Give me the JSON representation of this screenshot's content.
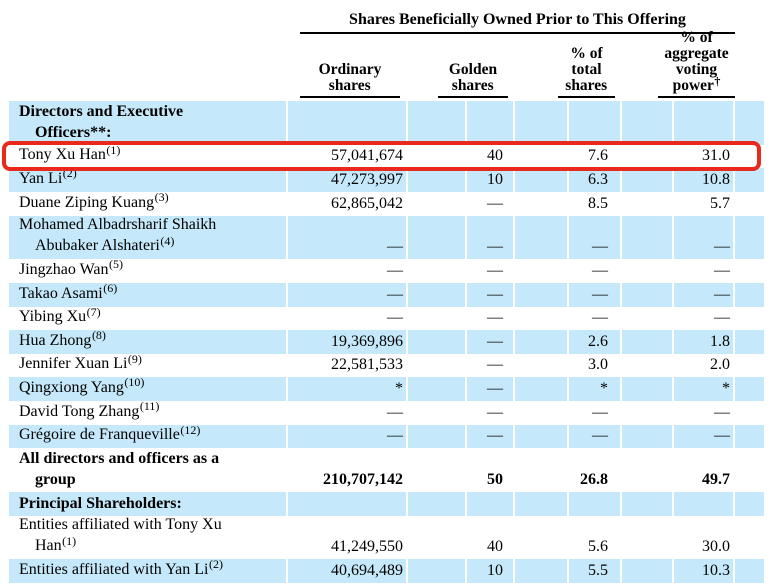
{
  "table": {
    "span_header": "Shares Beneficially Owned Prior to This Offering",
    "columns": [
      {
        "label": "Ordinary\nshares",
        "sup": ""
      },
      {
        "label": "Golden\nshares",
        "sup": ""
      },
      {
        "label": "% of\ntotal\nshares",
        "sup": ""
      },
      {
        "label": "% of\naggregate\nvoting\npower",
        "sup": "†"
      }
    ],
    "rows": [
      {
        "name_lines": [
          "Directors and Executive",
          "Officers**:"
        ],
        "sup": "",
        "bold": true,
        "bg": "blue",
        "highlighted": false,
        "cells": [
          "",
          "",
          "",
          ""
        ]
      },
      {
        "name_lines": [
          "Tony Xu Han"
        ],
        "sup": "(1)",
        "bold": false,
        "bg": "white",
        "highlighted": true,
        "cells": [
          "57,041,674",
          "40",
          "7.6",
          "31.0"
        ]
      },
      {
        "name_lines": [
          "Yan Li"
        ],
        "sup": "(2)",
        "bold": false,
        "bg": "blue",
        "highlighted": false,
        "cells": [
          "47,273,997",
          "10",
          "6.3",
          "10.8"
        ]
      },
      {
        "name_lines": [
          "Duane Ziping Kuang"
        ],
        "sup": "(3)",
        "bold": false,
        "bg": "white",
        "highlighted": false,
        "cells": [
          "62,865,042",
          "—",
          "8.5",
          "5.7"
        ]
      },
      {
        "name_lines": [
          "Mohamed Albadrsharif Shaikh",
          "Abubaker Alshateri"
        ],
        "sup": "(4)",
        "bold": false,
        "bg": "blue",
        "highlighted": false,
        "cells": [
          "—",
          "—",
          "—",
          "—"
        ]
      },
      {
        "name_lines": [
          "Jingzhao Wan"
        ],
        "sup": "(5)",
        "bold": false,
        "bg": "white",
        "highlighted": false,
        "cells": [
          "—",
          "—",
          "—",
          "—"
        ]
      },
      {
        "name_lines": [
          "Takao Asami"
        ],
        "sup": "(6)",
        "bold": false,
        "bg": "blue",
        "highlighted": false,
        "cells": [
          "—",
          "—",
          "—",
          "—"
        ]
      },
      {
        "name_lines": [
          "Yibing Xu"
        ],
        "sup": "(7)",
        "bold": false,
        "bg": "white",
        "highlighted": false,
        "cells": [
          "—",
          "—",
          "—",
          "—"
        ]
      },
      {
        "name_lines": [
          "Hua Zhong"
        ],
        "sup": "(8)",
        "bold": false,
        "bg": "blue",
        "highlighted": false,
        "cells": [
          "19,369,896",
          "—",
          "2.6",
          "1.8"
        ]
      },
      {
        "name_lines": [
          "Jennifer Xuan Li"
        ],
        "sup": "(9)",
        "bold": false,
        "bg": "white",
        "highlighted": false,
        "cells": [
          "22,581,533",
          "—",
          "3.0",
          "2.0"
        ]
      },
      {
        "name_lines": [
          "Qingxiong Yang"
        ],
        "sup": "(10)",
        "bold": false,
        "bg": "blue",
        "highlighted": false,
        "cells": [
          "*",
          "—",
          "*",
          "*"
        ]
      },
      {
        "name_lines": [
          "David Tong Zhang"
        ],
        "sup": "(11)",
        "bold": false,
        "bg": "white",
        "highlighted": false,
        "cells": [
          "—",
          "—",
          "—",
          "—"
        ]
      },
      {
        "name_lines": [
          "Grégoire de Franqueville"
        ],
        "sup": "(12)",
        "bold": false,
        "bg": "blue",
        "highlighted": false,
        "cells": [
          "—",
          "—",
          "—",
          "—"
        ]
      },
      {
        "name_lines": [
          "All directors and officers as a",
          "group"
        ],
        "sup": "",
        "bold": true,
        "bg": "white",
        "highlighted": false,
        "cells": [
          "210,707,142",
          "50",
          "26.8",
          "49.7"
        ]
      },
      {
        "name_lines": [
          "Principal Shareholders:"
        ],
        "sup": "",
        "bold": true,
        "bg": "blue",
        "highlighted": false,
        "cells": [
          "",
          "",
          "",
          ""
        ]
      },
      {
        "name_lines": [
          "Entities affiliated with Tony Xu",
          "Han"
        ],
        "sup": "(1)",
        "bold": false,
        "bg": "white",
        "highlighted": false,
        "cells": [
          "41,249,550",
          "40",
          "5.6",
          "30.0"
        ]
      },
      {
        "name_lines": [
          "Entities affiliated with Yan Li"
        ],
        "sup": "(2)",
        "bold": false,
        "bg": "blue",
        "highlighted": false,
        "cells": [
          "40,694,489",
          "10",
          "5.5",
          "10.3"
        ]
      }
    ]
  },
  "annotation": {
    "type": "highlight-box",
    "target_row": "Tony Xu Han"
  },
  "colors": {
    "row_highlight": "#c5e9fa",
    "annotation_box": "#e8291c",
    "text": "#000000",
    "background": "#ffffff"
  }
}
